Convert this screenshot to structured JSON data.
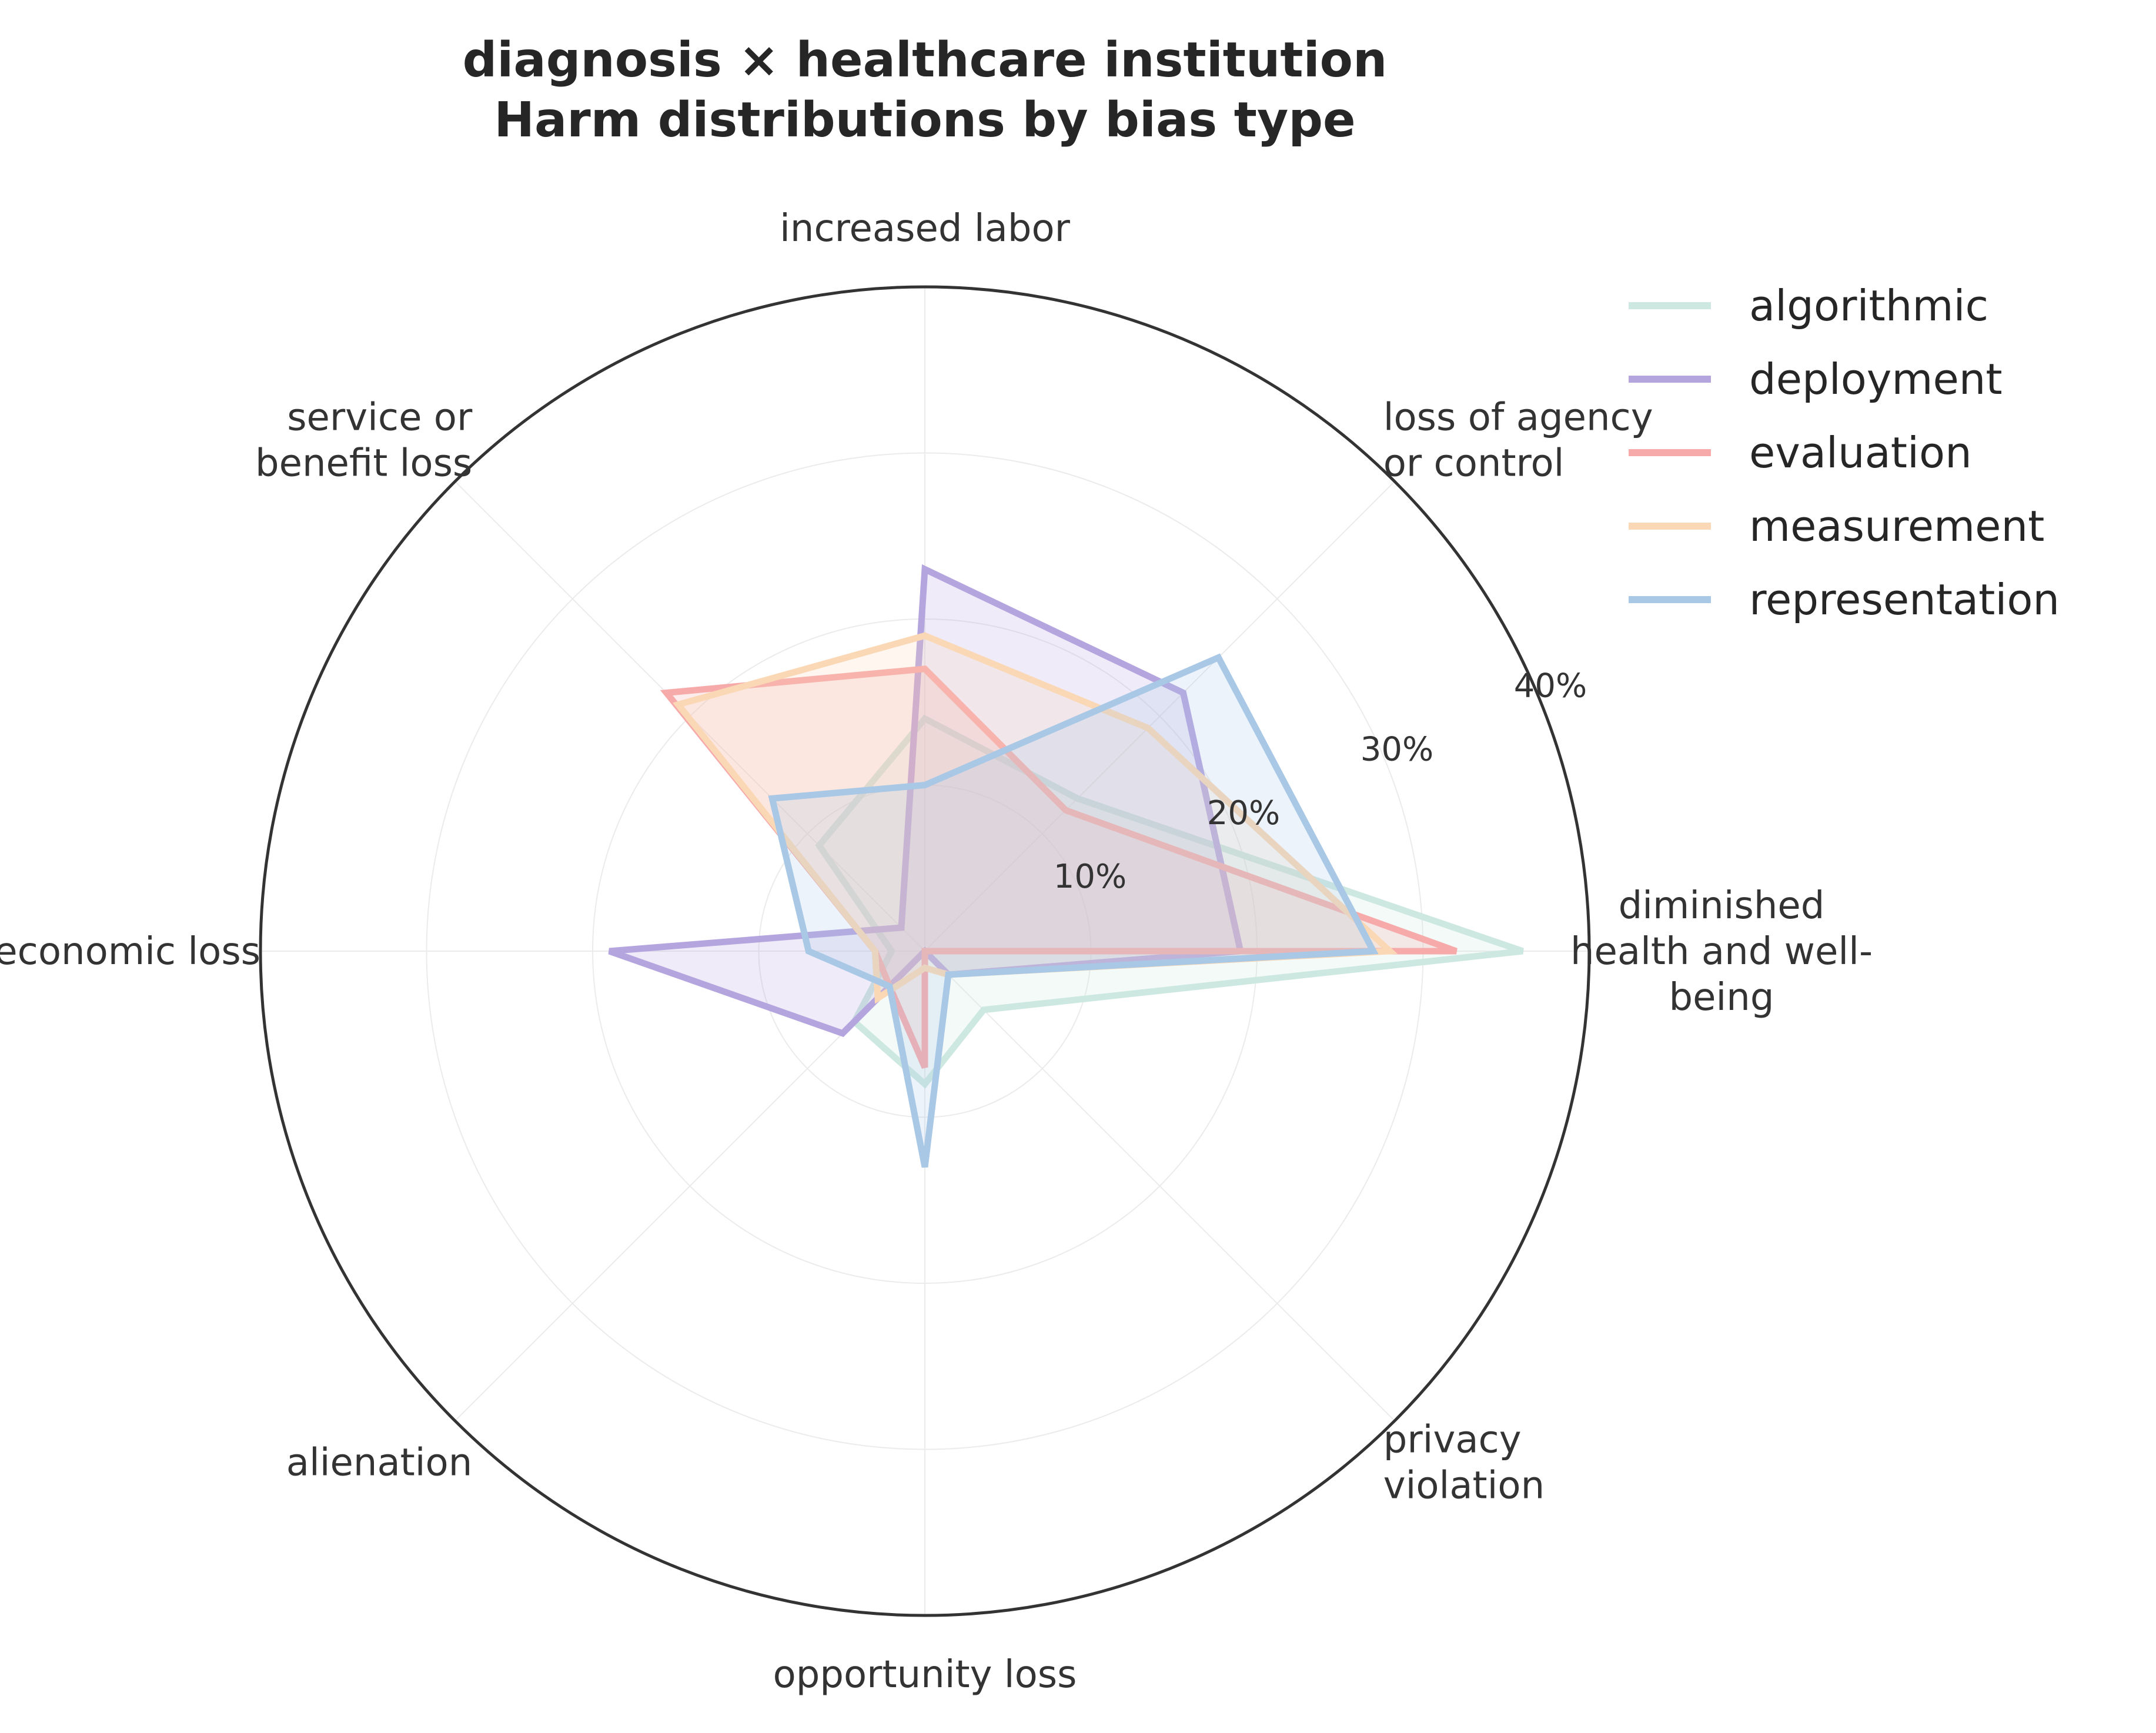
{
  "chart_data": {
    "type": "radar",
    "title": "diagnosis × healthcare institution\nHarm distributions by bias type",
    "categories": [
      "diminished\nhealth and well-\nbeing",
      "loss of agency\nor control",
      "increased labor",
      "service or\nbenefit loss",
      "economic loss",
      "alienation",
      "opportunity loss",
      "privacy\nviolation"
    ],
    "radial_ticks": [
      10,
      20,
      30,
      40
    ],
    "radial_tick_labels": [
      "10%",
      "20%",
      "30%",
      "40%"
    ],
    "rlim": [
      0,
      40
    ],
    "grid": true,
    "legend_position": "top-right",
    "series": [
      {
        "name": "algorithmic",
        "color": "#cde8e0",
        "values": [
          36,
          13,
          14,
          9,
          2,
          6,
          8,
          5
        ]
      },
      {
        "name": "deployment",
        "color": "#b5a5df",
        "values": [
          19,
          22,
          23,
          2,
          19,
          7,
          0,
          2
        ]
      },
      {
        "name": "evaluation",
        "color": "#f6aaaa",
        "values": [
          32,
          12,
          17,
          22,
          3,
          3,
          7,
          0
        ]
      },
      {
        "name": "measurement",
        "color": "#fbd8b5",
        "values": [
          28,
          19,
          19,
          21,
          3,
          4,
          1,
          2
        ]
      },
      {
        "name": "representation",
        "color": "#a8c8e6",
        "values": [
          27,
          25,
          10,
          13,
          7,
          3,
          13,
          2
        ]
      }
    ]
  }
}
